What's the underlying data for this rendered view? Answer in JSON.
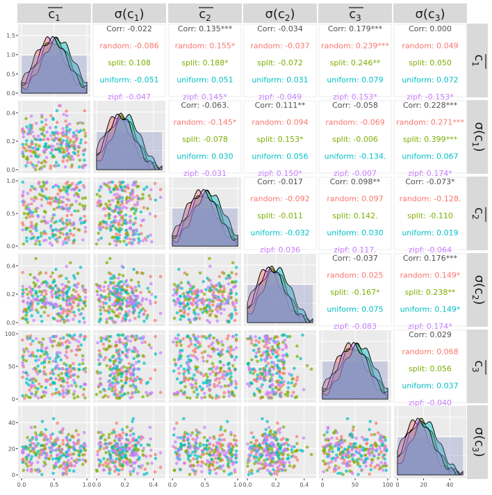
{
  "chart_data": {
    "type": "scatter-matrix",
    "variables": [
      {
        "key": "mc1",
        "base": "c",
        "sub": "1",
        "kind": "mean",
        "range": [
          0,
          1
        ],
        "ticks": [
          0.0,
          0.5,
          1.0
        ],
        "tick_labels": [
          "0.0",
          "0.5",
          "1.0"
        ],
        "mu": 0.5,
        "sd": 0.22
      },
      {
        "key": "sc1",
        "base": "c",
        "sub": "1",
        "kind": "sigma",
        "range": [
          0,
          0.46
        ],
        "ticks": [
          0.0,
          0.2,
          0.4
        ],
        "tick_labels": [
          "0.0",
          "0.2",
          "0.4"
        ],
        "mu": 0.18,
        "sd": 0.1
      },
      {
        "key": "mc2",
        "base": "c",
        "sub": "2",
        "kind": "mean",
        "range": [
          0,
          1
        ],
        "ticks": [
          0.0,
          0.5,
          1.0
        ],
        "tick_labels": [
          "0.0",
          "0.5",
          "1.0"
        ],
        "mu": 0.5,
        "sd": 0.2
      },
      {
        "key": "sc2",
        "base": "c",
        "sub": "2",
        "kind": "sigma",
        "range": [
          0,
          0.46
        ],
        "ticks": [
          0.0,
          0.2,
          0.4
        ],
        "tick_labels": [
          "0.0",
          "0.2",
          "0.4"
        ],
        "mu": 0.18,
        "sd": 0.1
      },
      {
        "key": "mc3",
        "base": "c",
        "sub": "3",
        "kind": "mean",
        "range": [
          0,
          100
        ],
        "ticks": [
          0,
          50,
          100
        ],
        "tick_labels": [
          "0",
          "50",
          "100"
        ],
        "mu": 50,
        "sd": 18
      },
      {
        "key": "sc3",
        "base": "c",
        "sub": "3",
        "kind": "sigma",
        "range": [
          0,
          50
        ],
        "ticks": [
          0,
          20,
          40
        ],
        "tick_labels": [
          "0",
          "20",
          "40"
        ],
        "mu": 18,
        "sd": 9
      }
    ],
    "y_tick_labels": [
      [
        "0.0",
        "0.5",
        "1.0",
        "1.5"
      ],
      [
        "0.0",
        "0.2",
        "0.4"
      ],
      [
        "0.0",
        "0.5",
        "1.0"
      ],
      [
        "0.0",
        "0.2",
        "0.4"
      ],
      [
        "0",
        "50",
        "100"
      ],
      [
        "0",
        "20",
        "40"
      ]
    ],
    "groups": [
      {
        "name": "random",
        "color": "#F8766D"
      },
      {
        "name": "split",
        "color": "#7CAE00"
      },
      {
        "name": "uniform",
        "color": "#00BFC4"
      },
      {
        "name": "zipf",
        "color": "#C77CFF"
      }
    ],
    "density_fill": "#8A8FC8",
    "correlations": [
      {
        "row": 0,
        "col": 1,
        "corr": "Corr: -0.022",
        "values": [
          "random: -0.086",
          "split: 0.108",
          "uniform: -0.051",
          "zipf: -0.047"
        ]
      },
      {
        "row": 0,
        "col": 2,
        "corr": "Corr: 0.135***",
        "values": [
          "random: 0.155*",
          "split: 0.188*",
          "uniform: 0.051",
          "zipf: 0.145*"
        ]
      },
      {
        "row": 0,
        "col": 3,
        "corr": "Corr: -0.034",
        "values": [
          "random: -0.037",
          "split: -0.072",
          "uniform: 0.031",
          "zipf: -0.049"
        ]
      },
      {
        "row": 0,
        "col": 4,
        "corr": "Corr: 0.179***",
        "values": [
          "random: 0.239***",
          "split: 0.246**",
          "uniform: 0.079",
          "zipf: 0.153*"
        ]
      },
      {
        "row": 0,
        "col": 5,
        "corr": "Corr: 0.000",
        "values": [
          "random: 0.049",
          "split: 0.050",
          "uniform: 0.072",
          "zipf: -0.153*"
        ]
      },
      {
        "row": 1,
        "col": 2,
        "corr": "Corr: -0.063.",
        "values": [
          "random: -0.145*",
          "split: -0.078",
          "uniform: 0.030",
          "zipf: -0.031"
        ]
      },
      {
        "row": 1,
        "col": 3,
        "corr": "Corr: 0.111**",
        "values": [
          "random: 0.094",
          "split: 0.153*",
          "uniform: 0.056",
          "zipf: 0.150*"
        ]
      },
      {
        "row": 1,
        "col": 4,
        "corr": "Corr: -0.058",
        "values": [
          "random: -0.069",
          "split: -0.006",
          "uniform: -0.134.",
          "zipf: -0.007"
        ]
      },
      {
        "row": 1,
        "col": 5,
        "corr": "Corr: 0.228***",
        "values": [
          "random: 0.271***",
          "split: 0.399***",
          "uniform: 0.067",
          "zipf: 0.174*"
        ]
      },
      {
        "row": 2,
        "col": 3,
        "corr": "Corr: -0.017",
        "values": [
          "random: -0.092",
          "split: -0.011",
          "uniform: -0.032",
          "zipf: 0.036"
        ]
      },
      {
        "row": 2,
        "col": 4,
        "corr": "Corr: 0.098**",
        "values": [
          "random: 0.097",
          "split: 0.142.",
          "uniform: 0.030",
          "zipf: 0.117."
        ]
      },
      {
        "row": 2,
        "col": 5,
        "corr": "Corr: -0.073*",
        "values": [
          "random: -0.128.",
          "split: -0.110",
          "uniform: 0.019",
          "zipf: -0.064"
        ]
      },
      {
        "row": 3,
        "col": 4,
        "corr": "Corr: -0.037",
        "values": [
          "random: 0.025",
          "split: -0.167*",
          "uniform: 0.075",
          "zipf: -0.083"
        ]
      },
      {
        "row": 3,
        "col": 5,
        "corr": "Corr: 0.176***",
        "values": [
          "random: 0.149*",
          "split: 0.238**",
          "uniform: 0.149*",
          "zipf: 0.174*"
        ]
      },
      {
        "row": 4,
        "col": 5,
        "corr": "Corr: 0.029",
        "values": [
          "random: 0.068",
          "split: 0.056",
          "uniform: 0.037",
          "zipf: -0.040"
        ]
      }
    ],
    "points_per_group": 65,
    "grid": true
  }
}
